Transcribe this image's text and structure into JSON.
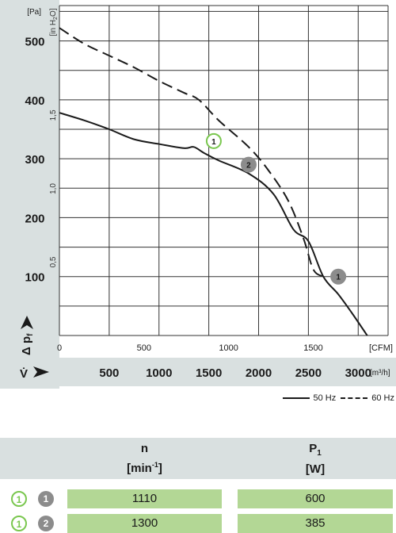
{
  "chart_data": {
    "type": "line",
    "title": "",
    "y_axis": {
      "symbol": "Δ p",
      "symbol_sub": "f",
      "unit": "[Pa]",
      "range": [
        0,
        560
      ],
      "ticks": [
        100,
        200,
        300,
        400,
        500
      ],
      "tick_labels": [
        "100",
        "200",
        "300",
        "400",
        "500"
      ],
      "secondary_unit": "[in H",
      "secondary_unit_sub": "2",
      "secondary_unit_end": "O]",
      "secondary_ticks": [
        0.5,
        1.0,
        1.5
      ],
      "secondary_tick_labels": [
        "0,5",
        "1,0",
        "1,5"
      ]
    },
    "x_axis": {
      "symbol": "V̇",
      "unit": "[m³/h]",
      "range": [
        0,
        3300
      ],
      "ticks": [
        500,
        1000,
        1500,
        2000,
        2500,
        3000
      ],
      "tick_labels": [
        "500",
        "1000",
        "1500",
        "2000",
        "2500",
        "3000"
      ],
      "secondary_unit": "[CFM]",
      "secondary_ticks": [
        0,
        500,
        1000,
        1500
      ],
      "secondary_tick_labels": [
        "0",
        "500",
        "1000",
        "1500"
      ]
    },
    "grid": true,
    "series": [
      {
        "name": "50 Hz",
        "style": "solid",
        "x": [
          0,
          250,
          500,
          750,
          1000,
          1250,
          1350,
          1450,
          1600,
          1900,
          2150,
          2350,
          2500,
          2650,
          2800,
          2950,
          3150
        ],
        "y": [
          378,
          365,
          350,
          333,
          325,
          318,
          320,
          310,
          297,
          275,
          240,
          180,
          160,
          100,
          70,
          35,
          -15
        ]
      },
      {
        "name": "60 Hz",
        "style": "dashed",
        "x": [
          0,
          250,
          500,
          750,
          1000,
          1250,
          1400,
          1600,
          1900,
          2100,
          2300,
          2450,
          2550,
          2650
        ],
        "y": [
          522,
          495,
          475,
          455,
          432,
          412,
          400,
          365,
          320,
          280,
          228,
          165,
          112,
          100
        ]
      }
    ],
    "operating_points": [
      {
        "label": "1",
        "style": "outline",
        "x": 1550,
        "y": 330,
        "color": "#7ac74f"
      },
      {
        "label": "2",
        "style": "filled",
        "x": 1900,
        "y": 290,
        "color": "#8c8c8c"
      },
      {
        "label": "1",
        "style": "filled",
        "x": 2800,
        "y": 100,
        "color": "#8c8c8c"
      }
    ],
    "legend": {
      "placement": "bottom-right"
    }
  },
  "table": {
    "headers": {
      "n_symbol": "n",
      "n_unit_open": "[min",
      "n_unit_sup": "-1",
      "n_unit_close": "]",
      "p_symbol": "P",
      "p_sub": "1",
      "p_unit": "[W]"
    },
    "rows": [
      {
        "mark_a": "1",
        "mark_b": "1",
        "n": "1110",
        "p": "600"
      },
      {
        "mark_a": "1",
        "mark_b": "2",
        "n": "1300",
        "p": "385"
      }
    ]
  },
  "colors": {
    "grid": "#333333",
    "axis_panel": "#d9e0e0",
    "marker_green": "#7ac74f",
    "marker_gray": "#8c8c8c",
    "table_cell": "#b3d795"
  }
}
